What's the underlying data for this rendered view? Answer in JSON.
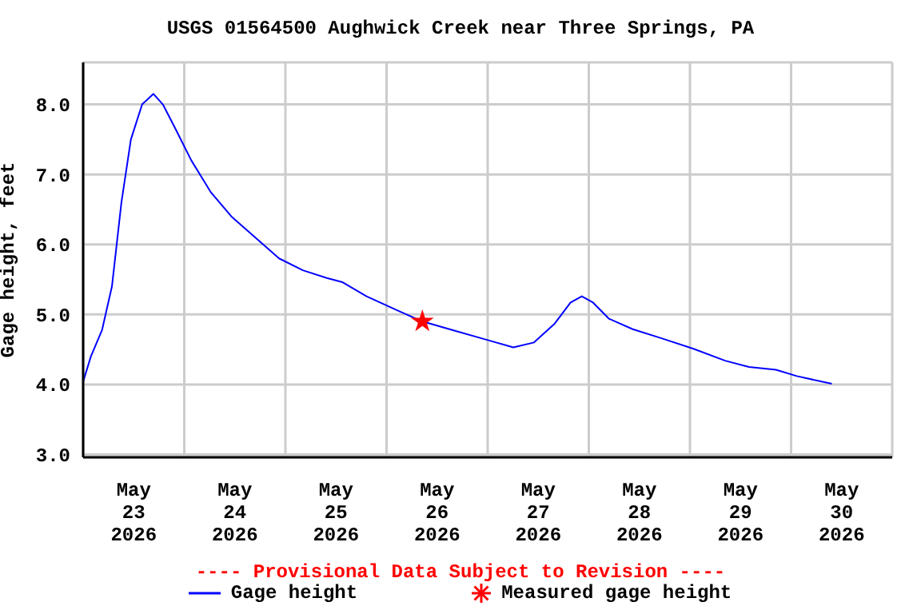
{
  "chart_data": {
    "type": "line",
    "title": "USGS 01564500 Aughwick Creek near Three Springs, PA",
    "ylabel": "Gage height, feet",
    "annotations": [
      "---- Provisional Data Subject to Revision ----"
    ],
    "xlim": [
      "2026-05-23T00:00",
      "2026-05-31T00:00"
    ],
    "xticks": [
      {
        "value": "2026-05-23T00:00",
        "label": null
      },
      {
        "value": "2026-05-23T12:00",
        "label": "May 23 2026"
      },
      {
        "value": "2026-05-24T00:00",
        "label": null
      },
      {
        "value": "2026-05-24T12:00",
        "label": "May 24 2026"
      },
      {
        "value": "2026-05-25T00:00",
        "label": null
      },
      {
        "value": "2026-05-25T12:00",
        "label": "May 25 2026"
      },
      {
        "value": "2026-05-26T00:00",
        "label": null
      },
      {
        "value": "2026-05-26T12:00",
        "label": "May 26 2026"
      },
      {
        "value": "2026-05-27T00:00",
        "label": null
      },
      {
        "value": "2026-05-27T12:00",
        "label": "May 27 2026"
      },
      {
        "value": "2026-05-28T00:00",
        "label": null
      },
      {
        "value": "2026-05-28T12:00",
        "label": "May 28 2026"
      },
      {
        "value": "2026-05-29T00:00",
        "label": null
      },
      {
        "value": "2026-05-29T12:00",
        "label": "May 29 2026"
      },
      {
        "value": "2026-05-30T00:00",
        "label": null
      },
      {
        "value": "2026-05-30T12:00",
        "label": "May 30 2026"
      },
      {
        "value": "2026-05-31T00:00",
        "label": null
      }
    ],
    "ylim": [
      2.96,
      8.6
    ],
    "yticks": [
      {
        "value": 3,
        "label": "3.0"
      },
      {
        "value": 4,
        "label": "4.0"
      },
      {
        "value": 5,
        "label": "5.0"
      },
      {
        "value": 6,
        "label": "6.0"
      },
      {
        "value": 7,
        "label": "7.0"
      },
      {
        "value": 8,
        "label": "8.0"
      }
    ],
    "grid": true,
    "legend": "bottom",
    "series": [
      {
        "name": "Gage height",
        "color": "#0000ff",
        "marker": "none",
        "line_style": "solid",
        "x": [
          "2026-05-23T00:00",
          "2026-05-23T01:50",
          "2026-05-23T04:30",
          "2026-05-23T06:50",
          "2026-05-23T09:05",
          "2026-05-23T11:20",
          "2026-05-23T14:00",
          "2026-05-23T16:40",
          "2026-05-23T18:55",
          "2026-05-23T21:55",
          "2026-05-24T01:40",
          "2026-05-24T06:15",
          "2026-05-24T11:10",
          "2026-05-24T16:50",
          "2026-05-24T22:30",
          "2026-05-25T04:10",
          "2026-05-25T09:50",
          "2026-05-25T13:35",
          "2026-05-25T19:15",
          "2026-05-26T02:50",
          "2026-05-26T08:30",
          "2026-05-26T16:05",
          "2026-05-26T23:40",
          "2026-05-27T06:05",
          "2026-05-27T11:00",
          "2026-05-27T15:55",
          "2026-05-27T19:40",
          "2026-05-27T22:20",
          "2026-05-28T01:00",
          "2026-05-28T04:45",
          "2026-05-28T10:25",
          "2026-05-28T17:15",
          "2026-05-29T00:50",
          "2026-05-29T08:20",
          "2026-05-29T14:00",
          "2026-05-29T20:25",
          "2026-05-30T01:20",
          "2026-05-30T09:40"
        ],
        "values": [
          4.04,
          4.4,
          4.78,
          5.4,
          6.6,
          7.5,
          8.0,
          8.15,
          8.0,
          7.65,
          7.2,
          6.75,
          6.4,
          6.1,
          5.8,
          5.63,
          5.52,
          5.46,
          5.26,
          5.05,
          4.9,
          4.77,
          4.64,
          4.53,
          4.6,
          4.87,
          5.17,
          5.26,
          5.17,
          4.94,
          4.79,
          4.66,
          4.51,
          4.34,
          4.25,
          4.21,
          4.12,
          4.01
        ]
      },
      {
        "name": "Measured gage height",
        "type": "scatter",
        "color": "#ff0000",
        "marker": "star",
        "x": [
          "2026-05-26T08:30"
        ],
        "values": [
          4.9
        ]
      }
    ]
  }
}
